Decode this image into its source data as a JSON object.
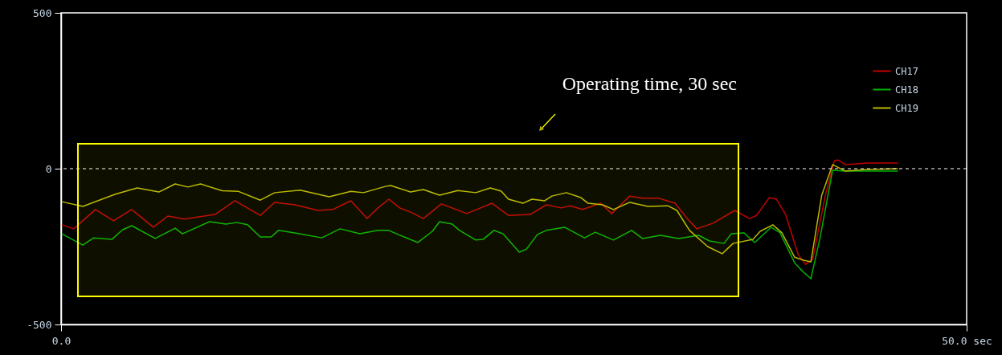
{
  "chart_data": {
    "type": "line",
    "xlim": [
      0,
      50
    ],
    "ylim": [
      -500,
      500
    ],
    "xticks": [
      {
        "value": 0,
        "label": "0.0"
      },
      {
        "value": 50,
        "label": "50.0 sec"
      }
    ],
    "yticks": [
      -500,
      0,
      500
    ],
    "grid": false,
    "legend": "top right",
    "marker": "none",
    "line_style": "solid",
    "series": [
      {
        "name": "CH17",
        "color": "#c00000",
        "x": [
          0.04,
          0.7,
          1.9,
          2.9,
          3.9,
          5.1,
          5.9,
          6.8,
          8.5,
          9.6,
          11.0,
          11.8,
          12.9,
          14.2,
          15.0,
          16.0,
          16.9,
          17.5,
          18.1,
          18.7,
          19.4,
          20.0,
          21.0,
          22.4,
          23.8,
          24.7,
          25.9,
          26.8,
          27.6,
          28.1,
          28.8,
          29.8,
          30.4,
          31.4,
          32.1,
          33.0,
          33.9,
          34.6,
          35.1,
          36.0,
          37.2,
          38.0,
          38.4,
          39.1,
          39.5,
          40.0,
          40.7,
          41.1,
          41.5,
          42.2,
          42.7,
          42.9,
          43.3,
          44.5,
          46.2
        ],
        "values": [
          -180,
          -193,
          -131,
          -167,
          -131,
          -188,
          -152,
          -162,
          -147,
          -103,
          -150,
          -108,
          -116,
          -134,
          -131,
          -103,
          -160,
          -126,
          -98,
          -126,
          -142,
          -160,
          -113,
          -144,
          -111,
          -150,
          -147,
          -116,
          -126,
          -119,
          -131,
          -111,
          -144,
          -88,
          -95,
          -95,
          -111,
          -162,
          -193,
          -175,
          -134,
          -160,
          -150,
          -93,
          -98,
          -147,
          -276,
          -307,
          -291,
          -85,
          26,
          28,
          13,
          18,
          18
        ]
      },
      {
        "name": "CH18",
        "color": "#00b000",
        "x": [
          0.04,
          1.2,
          1.8,
          2.8,
          3.4,
          3.9,
          5.2,
          6.3,
          6.7,
          8.2,
          9.1,
          9.7,
          10.3,
          11.0,
          11.6,
          12.0,
          12.9,
          14.4,
          15.4,
          16.5,
          17.5,
          18.1,
          18.6,
          19.7,
          20.5,
          20.9,
          21.6,
          22.0,
          22.9,
          23.3,
          23.9,
          24.4,
          25.3,
          25.7,
          26.3,
          26.8,
          27.8,
          28.9,
          29.5,
          30.5,
          31.5,
          32.1,
          33.1,
          34.1,
          35.2,
          35.8,
          36.6,
          37.0,
          37.7,
          38.3,
          39.2,
          39.7,
          40.5,
          40.9,
          41.4,
          41.9,
          42.6,
          43.3,
          46.2
        ],
        "values": [
          -209,
          -245,
          -222,
          -227,
          -196,
          -183,
          -224,
          -191,
          -209,
          -170,
          -178,
          -173,
          -180,
          -219,
          -219,
          -198,
          -206,
          -222,
          -193,
          -209,
          -198,
          -198,
          -211,
          -237,
          -201,
          -170,
          -178,
          -198,
          -229,
          -227,
          -198,
          -209,
          -268,
          -258,
          -211,
          -198,
          -188,
          -222,
          -204,
          -229,
          -198,
          -224,
          -214,
          -224,
          -214,
          -232,
          -240,
          -209,
          -206,
          -237,
          -188,
          -206,
          -302,
          -327,
          -353,
          -224,
          -5,
          -8,
          -8
        ]
      },
      {
        "name": "CH19",
        "color": "#b8b800",
        "x": [
          0.04,
          1.2,
          3.0,
          4.2,
          5.4,
          6.3,
          7.0,
          7.7,
          8.9,
          9.8,
          11.0,
          11.8,
          13.2,
          14.8,
          16.0,
          16.7,
          17.9,
          18.2,
          19.3,
          20.0,
          20.9,
          21.9,
          22.9,
          23.7,
          24.3,
          24.7,
          25.5,
          26.0,
          26.7,
          27.1,
          27.9,
          28.7,
          29.1,
          29.9,
          30.5,
          31.4,
          32.4,
          33.5,
          34.0,
          34.7,
          35.7,
          36.5,
          37.1,
          38.2,
          38.6,
          39.3,
          39.8,
          40.5,
          41.0,
          41.4,
          42.0,
          42.6,
          43.3,
          44.4,
          46.2
        ],
        "values": [
          -106,
          -121,
          -82,
          -62,
          -75,
          -49,
          -59,
          -49,
          -71,
          -73,
          -101,
          -77,
          -69,
          -90,
          -73,
          -77,
          -57,
          -54,
          -75,
          -67,
          -85,
          -70,
          -77,
          -62,
          -72,
          -98,
          -111,
          -98,
          -103,
          -88,
          -77,
          -93,
          -111,
          -116,
          -131,
          -108,
          -121,
          -119,
          -134,
          -198,
          -250,
          -273,
          -240,
          -227,
          -201,
          -180,
          -206,
          -284,
          -294,
          -299,
          -85,
          13,
          -8,
          -3,
          0
        ]
      }
    ],
    "ref_lines": [
      {
        "axis": "y",
        "value": 0,
        "color": "#ffffff",
        "line_style": "dashed"
      }
    ],
    "bands": [
      {
        "axis": "x",
        "from": 0.93,
        "to": 37.4,
        "label": "Operating time, 30 sec",
        "color": "#ffff00"
      }
    ]
  }
}
